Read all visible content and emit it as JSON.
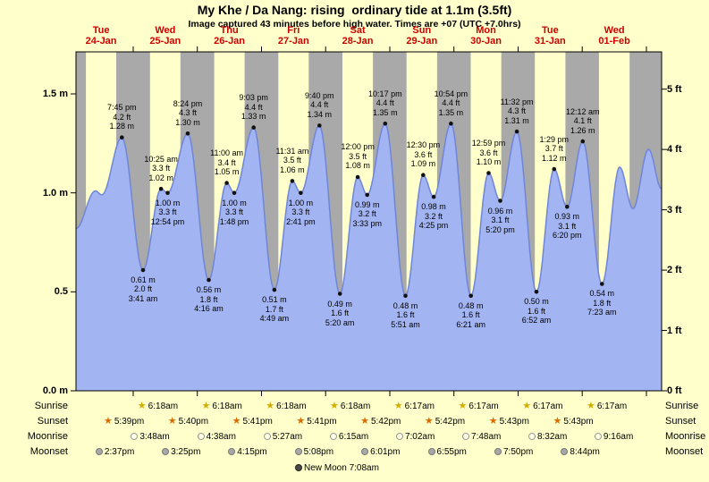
{
  "title": "My Khe / Da Nang: rising  ordinary tide at 1.1m (3.5ft)",
  "subtitle": "Image captured 43 minutes before high water. Times are +07 (UTC +7.0hrs)",
  "colors": {
    "background": "#ffffcc",
    "night_band": "#a9a9a9",
    "day_band": "#ffffcc",
    "tide_fill": "#a3b4f2",
    "tide_edge": "#6f86d8",
    "frame": "#000000",
    "date_label": "#cc0000",
    "annotation_dot": "#111111",
    "sunrise_star": "#cfae00",
    "sunset_star": "#d96b00",
    "moonrise_fill": "#ffffe4",
    "moonrise_edge": "#999999",
    "moonset_fill": "#a8a8a8",
    "moonset_edge": "#777777",
    "new_moon_fill": "#4a4a4a"
  },
  "days": [
    {
      "name": "Tue",
      "date": "24-Jan"
    },
    {
      "name": "Wed",
      "date": "25-Jan"
    },
    {
      "name": "Thu",
      "date": "26-Jan"
    },
    {
      "name": "Fri",
      "date": "27-Jan"
    },
    {
      "name": "Sat",
      "date": "28-Jan"
    },
    {
      "name": "Sun",
      "date": "29-Jan"
    },
    {
      "name": "Mon",
      "date": "30-Jan"
    },
    {
      "name": "Tue",
      "date": "31-Jan"
    },
    {
      "name": "Wed",
      "date": "01-Feb"
    }
  ],
  "y_axis_left": [
    {
      "label": "1.5 m",
      "value": 1.5
    },
    {
      "label": "1.0 m",
      "value": 1.0
    },
    {
      "label": "0.5",
      "value": 0.5
    },
    {
      "label": "0.0 m",
      "value": 0.0
    }
  ],
  "y_axis_right": [
    {
      "label": "5 ft",
      "ft": 5
    },
    {
      "label": "4 ft",
      "ft": 4
    },
    {
      "label": "3 ft",
      "ft": 3
    },
    {
      "label": "2 ft",
      "ft": 2
    },
    {
      "label": "1 ft",
      "ft": 1
    },
    {
      "label": "0 ft",
      "ft": 0
    }
  ],
  "chart_data": {
    "type": "area",
    "title": "My Khe / Da Nang tide curve, 24-Jan to 01-Feb",
    "ylabel_left": "meters",
    "ylabel_right": "feet",
    "ylim_m": [
      0.0,
      1.697
    ],
    "x_hours_range": [
      2.6,
      221.7
    ],
    "x_hours_origin": "Tue 24-Jan 00:00",
    "night_bands": [
      [
        2.6,
        6.3
      ],
      [
        17.65,
        30.3
      ],
      [
        41.67,
        54.3
      ],
      [
        65.68,
        78.3
      ],
      [
        89.68,
        102.28
      ],
      [
        113.7,
        126.28
      ],
      [
        137.7,
        150.28
      ],
      [
        161.72,
        174.28
      ],
      [
        185.72,
        198.28
      ],
      [
        209.72,
        221.7
      ]
    ],
    "extremes": [
      {
        "t": 2.6,
        "m": 0.82
      },
      {
        "t": 9.83,
        "m": 1.01
      },
      {
        "t": 12.25,
        "m": 0.99
      },
      {
        "t": 19.75,
        "m": 1.28,
        "pos": "above",
        "lines": [
          "7:45 pm",
          "4.2 ft",
          "1.28 m"
        ]
      },
      {
        "t": 27.68,
        "m": 0.61,
        "pos": "below",
        "lines": [
          "0.61 m",
          "2.0 ft",
          "3:41 am"
        ]
      },
      {
        "t": 34.42,
        "m": 1.02,
        "pos": "above",
        "lines": [
          "10:25 am",
          "3.3 ft",
          "1.02 m"
        ]
      },
      {
        "t": 36.9,
        "m": 1.0,
        "pos": "below",
        "lines": [
          "1.00 m",
          "3.3 ft",
          "12:54 pm"
        ]
      },
      {
        "t": 44.4,
        "m": 1.3,
        "pos": "above",
        "lines": [
          "8:24 pm",
          "4.3 ft",
          "1.30 m"
        ]
      },
      {
        "t": 52.27,
        "m": 0.56,
        "pos": "below",
        "lines": [
          "0.56 m",
          "1.8 ft",
          "4:16 am"
        ]
      },
      {
        "t": 59.0,
        "m": 1.05,
        "pos": "above",
        "lines": [
          "11:00 am",
          "3.4 ft",
          "1.05 m"
        ]
      },
      {
        "t": 61.8,
        "m": 1.0,
        "pos": "below",
        "lines": [
          "1.00 m",
          "3.3 ft",
          "1:48 pm"
        ]
      },
      {
        "t": 69.05,
        "m": 1.33,
        "pos": "above",
        "lines": [
          "9:03 pm",
          "4.4 ft",
          "1.33 m"
        ]
      },
      {
        "t": 76.82,
        "m": 0.51,
        "pos": "below",
        "lines": [
          "0.51 m",
          "1.7 ft",
          "4:49 am"
        ]
      },
      {
        "t": 83.52,
        "m": 1.06,
        "pos": "above",
        "lines": [
          "11:31 am",
          "3.5 ft",
          "1.06 m"
        ]
      },
      {
        "t": 86.68,
        "m": 1.0,
        "pos": "below",
        "lines": [
          "1.00 m",
          "3.3 ft",
          "2:41 pm"
        ]
      },
      {
        "t": 93.67,
        "m": 1.34,
        "pos": "above",
        "lines": [
          "9:40 pm",
          "4.4 ft",
          "1.34 m"
        ]
      },
      {
        "t": 101.33,
        "m": 0.49,
        "pos": "below",
        "lines": [
          "0.49 m",
          "1.6 ft",
          "5:20 am"
        ]
      },
      {
        "t": 108.0,
        "m": 1.08,
        "pos": "above",
        "lines": [
          "12:00 pm",
          "3.5 ft",
          "1.08 m"
        ]
      },
      {
        "t": 111.55,
        "m": 0.99,
        "pos": "below",
        "lines": [
          "0.99 m",
          "3.2 ft",
          "3:33 pm"
        ]
      },
      {
        "t": 118.28,
        "m": 1.35,
        "pos": "above",
        "lines": [
          "10:17 pm",
          "4.4 ft",
          "1.35 m"
        ]
      },
      {
        "t": 125.85,
        "m": 0.48,
        "pos": "below",
        "lines": [
          "0.48 m",
          "1.6 ft",
          "5:51 am"
        ]
      },
      {
        "t": 132.5,
        "m": 1.09,
        "pos": "above",
        "lines": [
          "12:30 pm",
          "3.6 ft",
          "1.09 m"
        ]
      },
      {
        "t": 136.42,
        "m": 0.98,
        "pos": "below",
        "lines": [
          "0.98 m",
          "3.2 ft",
          "4:25 pm"
        ]
      },
      {
        "t": 142.9,
        "m": 1.35,
        "pos": "above",
        "lines": [
          "10:54 pm",
          "4.4 ft",
          "1.35 m"
        ]
      },
      {
        "t": 150.35,
        "m": 0.48,
        "pos": "below",
        "lines": [
          "0.48 m",
          "1.6 ft",
          "6:21 am"
        ]
      },
      {
        "t": 156.98,
        "m": 1.1,
        "pos": "above",
        "lines": [
          "12:59 pm",
          "3.6 ft",
          "1.10 m"
        ]
      },
      {
        "t": 161.33,
        "m": 0.96,
        "pos": "below",
        "lines": [
          "0.96 m",
          "3.1 ft",
          "5:20 pm"
        ]
      },
      {
        "t": 167.53,
        "m": 1.31,
        "pos": "above",
        "lines": [
          "11:32 pm",
          "4.3 ft",
          "1.31 m"
        ]
      },
      {
        "t": 174.87,
        "m": 0.5,
        "pos": "below",
        "lines": [
          "0.50 m",
          "1.6 ft",
          "6:52 am"
        ]
      },
      {
        "t": 181.48,
        "m": 1.12,
        "pos": "above",
        "lines": [
          "1:29 pm",
          "3.7 ft",
          "1.12 m"
        ]
      },
      {
        "t": 186.33,
        "m": 0.93,
        "pos": "below",
        "lines": [
          "0.93 m",
          "3.1 ft",
          "6:20 pm"
        ]
      },
      {
        "t": 192.2,
        "m": 1.26,
        "pos": "above",
        "lines": [
          "12:12 am",
          "4.1 ft",
          "1.26 m"
        ]
      },
      {
        "t": 199.38,
        "m": 0.54,
        "pos": "below",
        "lines": [
          "0.54 m",
          "1.8 ft",
          "7:23 am"
        ]
      },
      {
        "t": 206.0,
        "m": 1.13
      },
      {
        "t": 211.0,
        "m": 0.92
      },
      {
        "t": 216.8,
        "m": 1.22
      },
      {
        "t": 221.7,
        "m": 1.02
      }
    ]
  },
  "astro": {
    "rows": [
      {
        "label": "Sunrise",
        "icon": "sunrise-star-icon",
        "entries": [
          {
            "time": "6:18am",
            "t": 30.3
          },
          {
            "time": "6:18am",
            "t": 54.3
          },
          {
            "time": "6:18am",
            "t": 78.3
          },
          {
            "time": "6:18am",
            "t": 102.3
          },
          {
            "time": "6:17am",
            "t": 126.28
          },
          {
            "time": "6:17am",
            "t": 150.28
          },
          {
            "time": "6:17am",
            "t": 174.28
          },
          {
            "time": "6:17am",
            "t": 198.28
          }
        ]
      },
      {
        "label": "Sunset",
        "icon": "sunset-star-icon",
        "entries": [
          {
            "time": "5:39pm",
            "t": 17.65
          },
          {
            "time": "5:40pm",
            "t": 41.67
          },
          {
            "time": "5:41pm",
            "t": 65.68
          },
          {
            "time": "5:41pm",
            "t": 89.68
          },
          {
            "time": "5:42pm",
            "t": 113.7
          },
          {
            "time": "5:42pm",
            "t": 137.7
          },
          {
            "time": "5:43pm",
            "t": 161.72
          },
          {
            "time": "5:43pm",
            "t": 185.72
          }
        ]
      },
      {
        "label": "Moonrise",
        "icon": "moonrise-icon",
        "entries": [
          {
            "time": "3:48am",
            "t": 27.8
          },
          {
            "time": "4:38am",
            "t": 52.63
          },
          {
            "time": "5:27am",
            "t": 77.45
          },
          {
            "time": "6:15am",
            "t": 102.25
          },
          {
            "time": "7:02am",
            "t": 127.03
          },
          {
            "time": "7:48am",
            "t": 151.8
          },
          {
            "time": "8:32am",
            "t": 176.53
          },
          {
            "time": "9:16am",
            "t": 201.27
          }
        ]
      },
      {
        "label": "Moonset",
        "icon": "moonset-icon",
        "entries": [
          {
            "time": "2:37pm",
            "t": 14.62
          },
          {
            "time": "3:25pm",
            "t": 39.42
          },
          {
            "time": "4:15pm",
            "t": 64.25
          },
          {
            "time": "5:08pm",
            "t": 89.13
          },
          {
            "time": "6:01pm",
            "t": 114.02
          },
          {
            "time": "6:55pm",
            "t": 138.92
          },
          {
            "time": "7:50pm",
            "t": 163.83
          },
          {
            "time": "8:44pm",
            "t": 188.73
          }
        ]
      }
    ],
    "moon_phase": {
      "label": "New Moon",
      "time": "7:08am",
      "icon": "new-moon-icon"
    }
  }
}
